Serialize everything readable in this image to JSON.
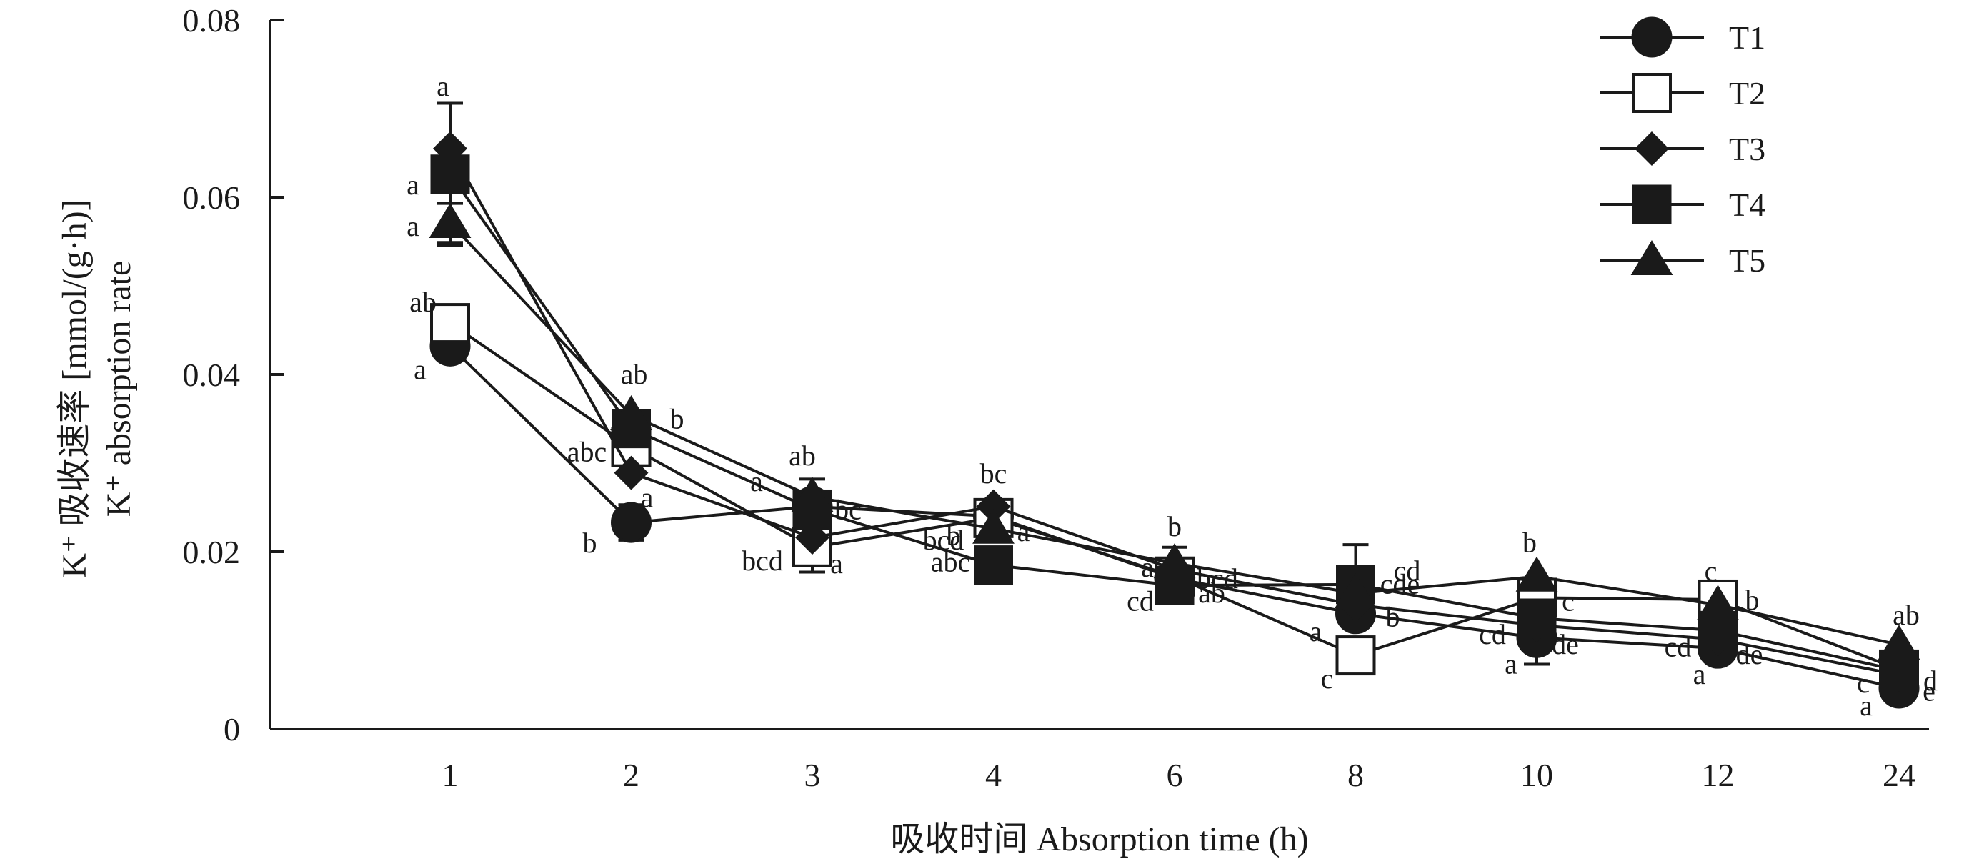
{
  "chart_data": {
    "type": "line",
    "categories": [
      "1",
      "2",
      "3",
      "4",
      "6",
      "8",
      "10",
      "12",
      "24"
    ],
    "xlabel": "吸收时间 Absorption time (h)",
    "ylabel_lines": [
      "K⁺ 吸收速率 [mmol/(g·h)]",
      "K⁺ absorption rate"
    ],
    "ylim": [
      0,
      0.08
    ],
    "yticks": [
      0,
      0.02,
      0.04,
      0.06,
      0.08
    ],
    "ytick_labels": [
      "0",
      "0.02",
      "0.04",
      "0.06",
      "0.08"
    ],
    "legend_position": "top-right",
    "grid": false,
    "series": [
      {
        "name": "T1",
        "marker": "circle-filled",
        "values": [
          0.0432,
          0.0233,
          0.0251,
          0.024,
          0.017,
          0.013,
          0.0103,
          0.0091,
          0.0046
        ],
        "errors": [
          0,
          0.002,
          0,
          0,
          0,
          0,
          0.003,
          0,
          0
        ],
        "labels": [
          "a",
          "b",
          "a",
          "b",
          "ab",
          "a",
          "a",
          "a",
          "a"
        ]
      },
      {
        "name": "T2",
        "marker": "square-open",
        "values": [
          0.0458,
          0.0318,
          0.0205,
          0.0238,
          0.0172,
          0.0083,
          0.0148,
          0.0146,
          0.0067
        ],
        "errors": [
          0,
          0,
          0.0028,
          0,
          0,
          0,
          0,
          0,
          0
        ],
        "labels": [
          "ab",
          "abc",
          "a",
          "a",
          "cd",
          "c",
          "c",
          "b",
          "c"
        ]
      },
      {
        "name": "T3",
        "marker": "diamond-filled",
        "values": [
          0.0655,
          0.0289,
          0.0216,
          0.0251,
          0.018,
          0.014,
          0.0117,
          0.0101,
          0.0061
        ],
        "errors": [
          0,
          0,
          0,
          0,
          0,
          0,
          0,
          0,
          0
        ],
        "labels": [
          "a",
          "a",
          "bcd",
          "bcd",
          "bcd",
          "b",
          "de",
          "de",
          "e"
        ]
      },
      {
        "name": "T4",
        "marker": "square-filled",
        "values": [
          0.0626,
          0.0339,
          0.0248,
          0.0185,
          0.0162,
          0.0163,
          0.0125,
          0.0111,
          0.0066
        ],
        "errors": [
          0.008,
          0,
          0,
          0,
          0,
          0.0045,
          0,
          0,
          0
        ],
        "labels": [
          "a",
          "b",
          "bc",
          "abc",
          "a",
          "cd",
          "cd",
          "cd",
          "d"
        ]
      },
      {
        "name": "T5",
        "marker": "triangle-filled",
        "values": [
          0.0571,
          0.0354,
          0.0262,
          0.0226,
          0.0187,
          0.0153,
          0.0172,
          0.014,
          0.0095
        ],
        "errors": [
          0.0022,
          0,
          0.002,
          0,
          0.0018,
          0,
          0,
          0,
          0
        ],
        "labels": [
          "a",
          "ab",
          "ab",
          "bc",
          "b",
          "cde",
          "b",
          "c",
          "ab"
        ]
      }
    ]
  }
}
